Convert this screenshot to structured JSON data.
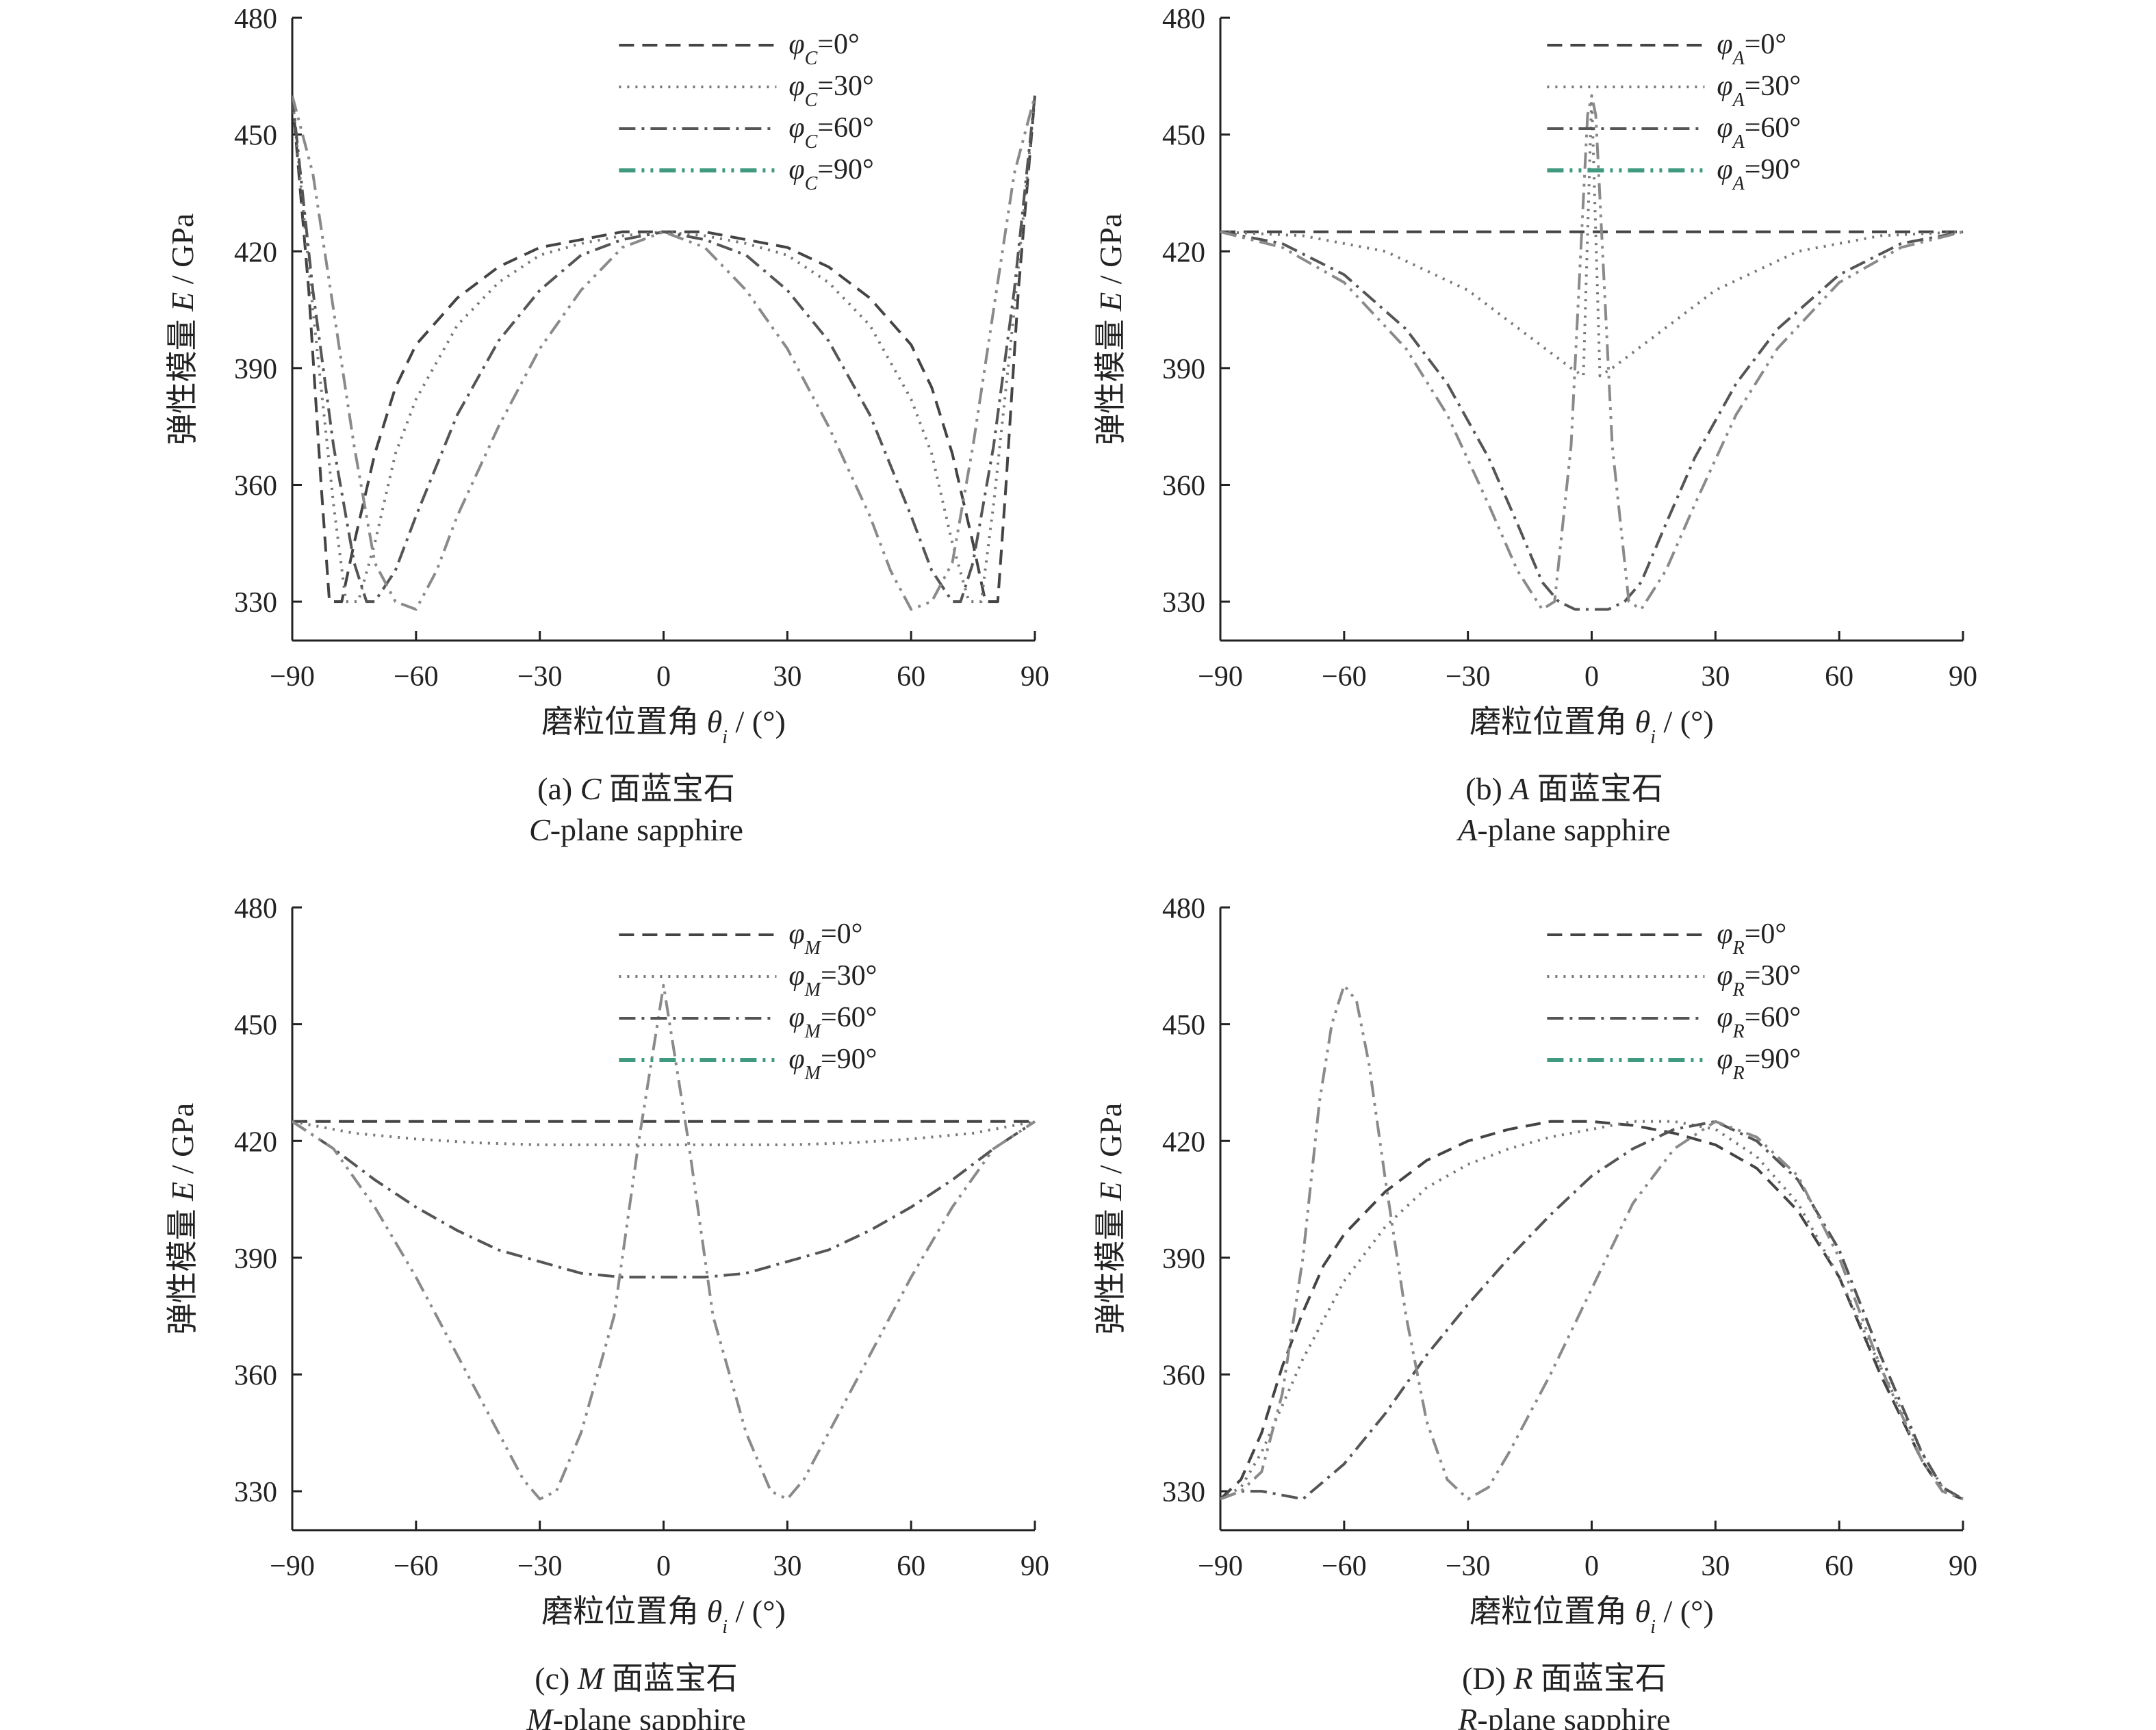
{
  "colors": {
    "phi0": "#444444",
    "phi30": "#777777",
    "phi60": "#555555",
    "phi90": "#8a8a8a",
    "legend90": "#3f9a7f",
    "accentBlue": "#4a4aa0"
  },
  "chart_data": [
    {
      "id": "c",
      "type": "line",
      "caption_cn": "(a) C 面蓝宝石",
      "caption_en": "C-plane sapphire",
      "xlabel": "磨粒位置角 θi / (°)",
      "ylabel": "弹性模量 E / GPa",
      "xlim": [
        -90,
        90
      ],
      "ylim": [
        320,
        480
      ],
      "xticks": [
        -90,
        -60,
        -30,
        0,
        30,
        60,
        90
      ],
      "yticks": [
        330,
        360,
        390,
        420,
        450,
        480
      ],
      "legend_position": "top-right",
      "series": [
        {
          "name": "φC=0°",
          "style": "phi0",
          "x": [
            -90,
            -86,
            -83,
            -81,
            -78,
            -75,
            -70,
            -65,
            -60,
            -50,
            -40,
            -30,
            -20,
            -10,
            0,
            10,
            20,
            30,
            40,
            50,
            60,
            65,
            70,
            75,
            78,
            81,
            83,
            86,
            90
          ],
          "y": [
            460,
            410,
            360,
            330,
            330,
            345,
            368,
            385,
            396,
            408,
            416,
            421,
            423,
            425,
            425,
            425,
            423,
            421,
            416,
            408,
            396,
            385,
            368,
            345,
            330,
            330,
            360,
            410,
            460
          ]
        },
        {
          "name": "φC=30°",
          "style": "phi30",
          "x": [
            -90,
            -85,
            -80,
            -77,
            -74,
            -70,
            -65,
            -60,
            -50,
            -40,
            -30,
            -20,
            -10,
            0,
            10,
            20,
            30,
            40,
            50,
            60,
            65,
            70,
            74,
            77,
            80,
            85,
            90
          ],
          "y": [
            460,
            405,
            355,
            330,
            330,
            345,
            368,
            382,
            401,
            412,
            419,
            422,
            424,
            425,
            424,
            422,
            419,
            412,
            401,
            382,
            368,
            345,
            330,
            330,
            355,
            405,
            460
          ]
        },
        {
          "name": "φC=60°",
          "style": "phi60",
          "x": [
            -90,
            -85,
            -80,
            -75,
            -72,
            -70,
            -65,
            -60,
            -50,
            -40,
            -30,
            -20,
            -10,
            0,
            10,
            20,
            30,
            40,
            50,
            60,
            65,
            70,
            72,
            75,
            80,
            85,
            90
          ],
          "y": [
            460,
            410,
            370,
            340,
            330,
            330,
            338,
            352,
            378,
            397,
            410,
            419,
            423,
            425,
            423,
            419,
            410,
            397,
            378,
            352,
            338,
            330,
            330,
            340,
            370,
            410,
            460
          ]
        },
        {
          "name": "φC=90°",
          "style": "phi90",
          "x": [
            -90,
            -85,
            -80,
            -75,
            -70,
            -65,
            -60,
            -55,
            -50,
            -40,
            -30,
            -20,
            -10,
            0,
            10,
            20,
            30,
            40,
            50,
            55,
            60,
            65,
            70,
            75,
            80,
            85,
            90
          ],
          "y": [
            460,
            440,
            405,
            370,
            340,
            330,
            328,
            338,
            352,
            375,
            395,
            410,
            421,
            425,
            421,
            410,
            395,
            375,
            352,
            338,
            328,
            330,
            340,
            370,
            405,
            440,
            460
          ]
        }
      ]
    },
    {
      "id": "a",
      "type": "line",
      "caption_cn": "(b) A 面蓝宝石",
      "caption_en": "A-plane sapphire",
      "xlabel": "磨粒位置角 θi / (°)",
      "ylabel": "弹性模量 E / GPa",
      "xlim": [
        -90,
        90
      ],
      "ylim": [
        320,
        480
      ],
      "xticks": [
        -90,
        -60,
        -30,
        0,
        30,
        60,
        90
      ],
      "yticks": [
        330,
        360,
        390,
        420,
        450,
        480
      ],
      "legend_position": "top-right",
      "series": [
        {
          "name": "φA=0°",
          "style": "phi0",
          "x": [
            -90,
            90
          ],
          "y": [
            425,
            425
          ]
        },
        {
          "name": "φA=30°",
          "style": "phi30",
          "x": [
            -90,
            -70,
            -50,
            -30,
            -20,
            -10,
            -5,
            -2,
            0,
            2,
            5,
            10,
            20,
            30,
            50,
            70,
            90
          ],
          "y": [
            425,
            424,
            420,
            410,
            402,
            394,
            390,
            388,
            460,
            388,
            390,
            394,
            402,
            410,
            420,
            424,
            425
          ]
        },
        {
          "name": "φA=60°",
          "style": "phi60",
          "x": [
            -90,
            -75,
            -60,
            -45,
            -35,
            -25,
            -18,
            -12,
            -8,
            -4,
            0,
            4,
            8,
            12,
            18,
            25,
            35,
            45,
            60,
            75,
            90
          ],
          "y": [
            425,
            422,
            414,
            400,
            386,
            367,
            350,
            335,
            330,
            328,
            328,
            328,
            330,
            335,
            350,
            367,
            386,
            400,
            414,
            422,
            425
          ]
        },
        {
          "name": "φA=90°",
          "style": "phi90",
          "x": [
            -90,
            -75,
            -60,
            -45,
            -35,
            -25,
            -18,
            -12,
            -9,
            -5,
            -1,
            0,
            1,
            5,
            9,
            12,
            18,
            25,
            35,
            45,
            60,
            75,
            90
          ],
          "y": [
            425,
            421,
            412,
            395,
            378,
            355,
            338,
            328,
            330,
            370,
            455,
            460,
            455,
            370,
            330,
            328,
            338,
            355,
            378,
            395,
            412,
            421,
            425
          ]
        }
      ]
    },
    {
      "id": "m",
      "type": "line",
      "caption_cn": "(c) M 面蓝宝石",
      "caption_en": "M-plane sapphire",
      "xlabel": "磨粒位置角 θi / (°)",
      "ylabel": "弹性模量 E / GPa",
      "xlim": [
        -90,
        90
      ],
      "ylim": [
        320,
        480
      ],
      "xticks": [
        -90,
        -60,
        -30,
        0,
        30,
        60,
        90
      ],
      "yticks": [
        330,
        360,
        390,
        420,
        450,
        480
      ],
      "legend_position": "top-right",
      "series": [
        {
          "name": "φM=0°",
          "style": "phi0",
          "x": [
            -90,
            90
          ],
          "y": [
            425,
            425
          ]
        },
        {
          "name": "φM=30°",
          "style": "phi30",
          "x": [
            -90,
            -75,
            -60,
            -45,
            -30,
            -15,
            0,
            15,
            30,
            45,
            60,
            75,
            90
          ],
          "y": [
            425,
            422,
            420.5,
            419.5,
            419,
            419,
            419,
            419,
            419,
            419.5,
            420.5,
            422,
            425
          ]
        },
        {
          "name": "φM=60°",
          "style": "phi60",
          "x": [
            -90,
            -80,
            -70,
            -60,
            -50,
            -40,
            -30,
            -20,
            -10,
            0,
            10,
            20,
            30,
            40,
            50,
            60,
            70,
            80,
            90
          ],
          "y": [
            425,
            418,
            410,
            403,
            397,
            392,
            389,
            386,
            385,
            385,
            385,
            386,
            389,
            392,
            397,
            403,
            410,
            418,
            425
          ]
        },
        {
          "name": "φM=90°",
          "style": "phi90",
          "x": [
            -90,
            -80,
            -70,
            -60,
            -50,
            -40,
            -34,
            -30,
            -26,
            -20,
            -12,
            -6,
            0,
            6,
            12,
            20,
            26,
            30,
            34,
            40,
            50,
            60,
            70,
            80,
            90
          ],
          "y": [
            425,
            418,
            403,
            385,
            365,
            345,
            333,
            328,
            330,
            345,
            375,
            420,
            460,
            420,
            375,
            345,
            330,
            328,
            333,
            345,
            365,
            385,
            403,
            418,
            425
          ]
        }
      ]
    },
    {
      "id": "r",
      "type": "line",
      "caption_cn": "(D) R 面蓝宝石",
      "caption_en": "R-plane sapphire",
      "xlabel": "磨粒位置角 θi / (°)",
      "ylabel": "弹性模量 E / GPa",
      "xlim": [
        -90,
        90
      ],
      "ylim": [
        320,
        480
      ],
      "xticks": [
        -90,
        -60,
        -30,
        0,
        30,
        60,
        90
      ],
      "yticks": [
        330,
        360,
        390,
        420,
        450,
        480
      ],
      "legend_position": "top-right",
      "series": [
        {
          "name": "φR=0°",
          "style": "phi0",
          "x": [
            -90,
            -85,
            -80,
            -75,
            -70,
            -65,
            -60,
            -50,
            -40,
            -30,
            -20,
            -10,
            0,
            10,
            20,
            30,
            40,
            50,
            60,
            70,
            80,
            85,
            90
          ],
          "y": [
            328,
            333,
            345,
            362,
            376,
            388,
            396,
            407,
            415,
            420,
            423,
            425,
            425,
            424,
            422,
            419,
            413,
            402,
            385,
            360,
            338,
            330,
            328
          ]
        },
        {
          "name": "φR=30°",
          "style": "phi30",
          "x": [
            -90,
            -85,
            -80,
            -75,
            -70,
            -60,
            -50,
            -40,
            -30,
            -20,
            -10,
            0,
            10,
            20,
            30,
            40,
            50,
            60,
            70,
            80,
            85,
            90
          ],
          "y": [
            328,
            331,
            340,
            352,
            364,
            384,
            398,
            408,
            414,
            418,
            421,
            423,
            425,
            425,
            423,
            416,
            404,
            385,
            362,
            340,
            331,
            328
          ]
        },
        {
          "name": "φR=60°",
          "style": "phi60",
          "x": [
            -90,
            -85,
            -80,
            -75,
            -70,
            -60,
            -50,
            -40,
            -30,
            -20,
            -10,
            0,
            10,
            20,
            30,
            40,
            50,
            60,
            70,
            80,
            85,
            90
          ],
          "y": [
            328,
            330,
            330,
            329,
            328,
            337,
            350,
            365,
            378,
            390,
            401,
            411,
            418,
            423,
            425,
            420,
            410,
            392,
            365,
            340,
            331,
            328
          ]
        },
        {
          "name": "φR=90°",
          "style": "phi90",
          "x": [
            -90,
            -85,
            -80,
            -75,
            -70,
            -66,
            -63,
            -60,
            -57,
            -54,
            -50,
            -45,
            -40,
            -35,
            -30,
            -25,
            -20,
            -10,
            0,
            10,
            20,
            30,
            40,
            50,
            60,
            70,
            80,
            85,
            90
          ],
          "y": [
            328,
            330,
            335,
            355,
            390,
            430,
            450,
            460,
            456,
            440,
            410,
            375,
            348,
            333,
            328,
            331,
            340,
            360,
            382,
            404,
            418,
            425,
            421,
            411,
            390,
            362,
            338,
            330,
            328
          ]
        }
      ]
    }
  ]
}
